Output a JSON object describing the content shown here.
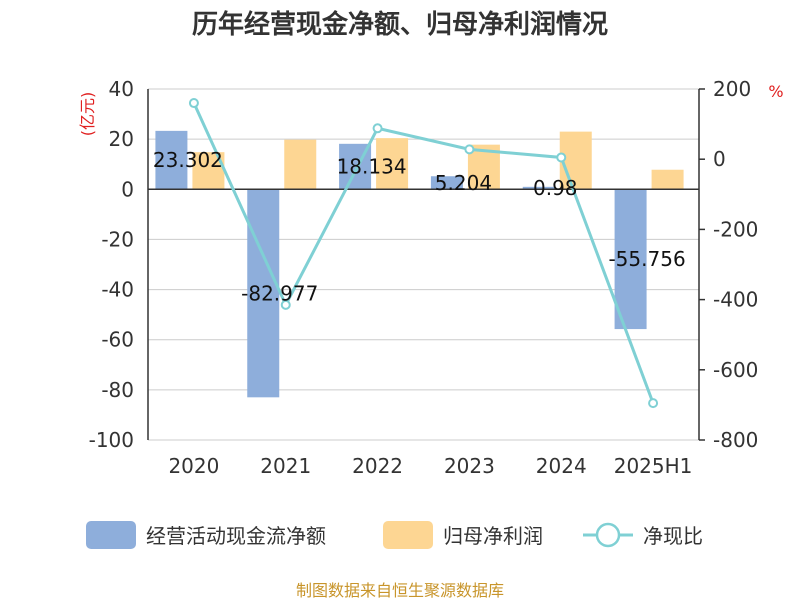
{
  "chart_data": {
    "type": "bar",
    "title": "历年经营现金净额、归母净利润情况",
    "categories": [
      "2020",
      "2021",
      "2022",
      "2023",
      "2024",
      "2025H1"
    ],
    "y_left": {
      "unit": "(亿元)",
      "min": -100,
      "max": 40,
      "ticks": [
        40,
        20,
        0,
        -20,
        -40,
        -60,
        -80,
        -100
      ]
    },
    "y_right": {
      "unit": "%",
      "min": -800,
      "max": 200,
      "ticks": [
        200,
        0,
        -200,
        -400,
        -600,
        -800
      ]
    },
    "series": [
      {
        "name": "经营活动现金流净额",
        "kind": "bar",
        "axis": "left",
        "color": "#8eaedb",
        "values": [
          23.302,
          -82.977,
          18.134,
          5.204,
          0.98,
          -55.756
        ],
        "labels": [
          "23.302",
          "-82.977",
          "18.134",
          "5.204",
          "0.98",
          "-55.756"
        ]
      },
      {
        "name": "归母净利润",
        "kind": "bar",
        "axis": "left",
        "color": "#fdd693",
        "values": [
          14.8,
          19.8,
          20.4,
          17.8,
          23.0,
          7.8
        ]
      },
      {
        "name": "净现比",
        "kind": "line",
        "axis": "right",
        "color": "#7fd0d4",
        "values": [
          160,
          -415,
          88,
          28,
          5,
          -695
        ]
      }
    ],
    "grid": true,
    "legend": "bottom"
  },
  "source": "制图数据来自恒生聚源数据库"
}
